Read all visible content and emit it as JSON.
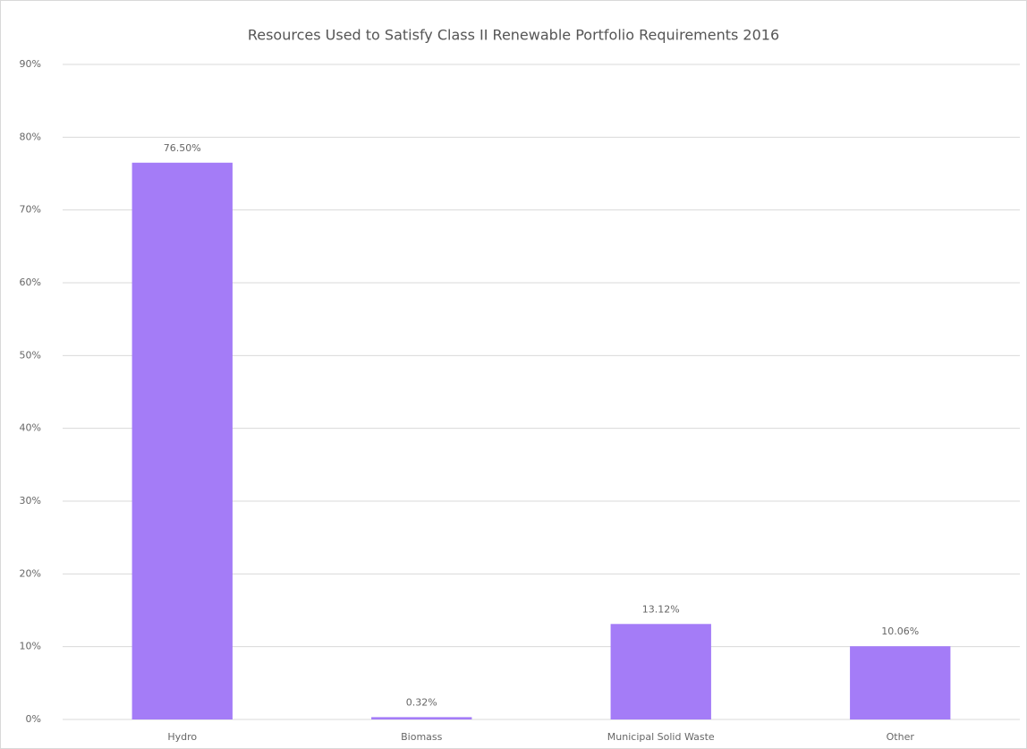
{
  "chart_data": {
    "type": "bar",
    "title": "Resources Used to Satisfy Class II Renewable Portfolio Requirements 2016",
    "categories": [
      "Hydro",
      "Biomass",
      "Municipal Solid Waste",
      "Other"
    ],
    "values": [
      76.5,
      0.32,
      13.12,
      10.06
    ],
    "value_labels": [
      "76.50%",
      "0.32%",
      "13.12%",
      "10.06%"
    ],
    "color": "#a47cf7",
    "ylim": [
      0,
      90
    ],
    "yticks": [
      {
        "value": 0,
        "label": "0%"
      },
      {
        "value": 10,
        "label": "10%"
      },
      {
        "value": 20,
        "label": "20%"
      },
      {
        "value": 30,
        "label": "30%"
      },
      {
        "value": 40,
        "label": "40%"
      },
      {
        "value": 50,
        "label": "50%"
      },
      {
        "value": 60,
        "label": "60%"
      },
      {
        "value": 70,
        "label": "70%"
      },
      {
        "value": 80,
        "label": "80%"
      },
      {
        "value": 90,
        "label": "90%"
      }
    ],
    "grid": true
  }
}
